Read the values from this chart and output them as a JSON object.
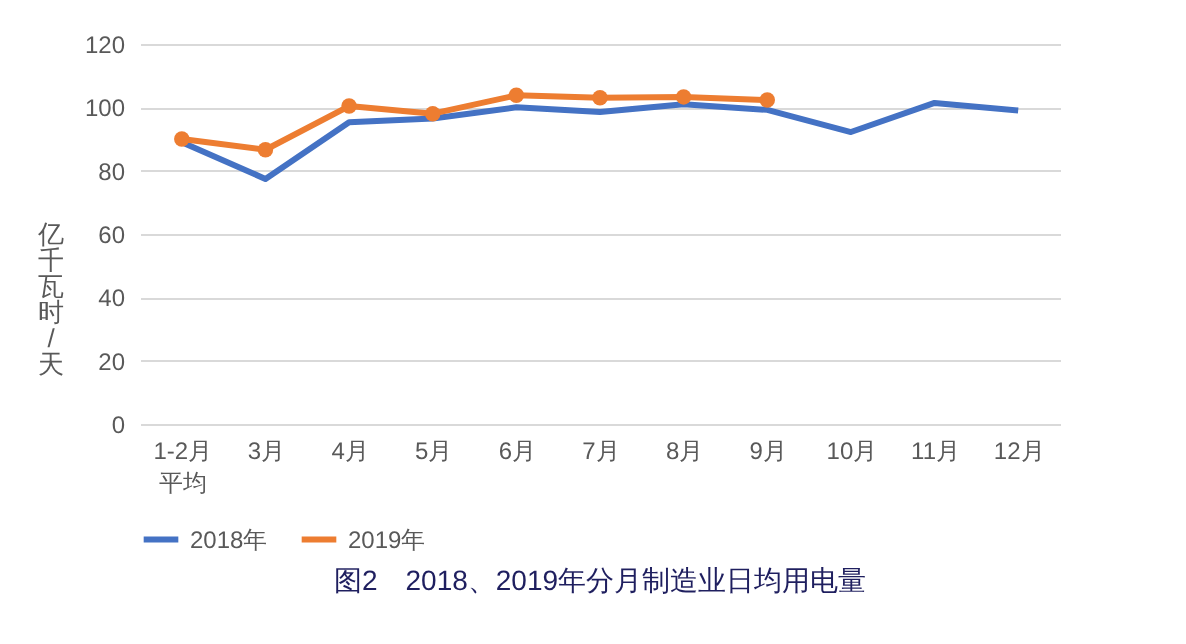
{
  "chart_data": {
    "type": "line",
    "title": "图2　2018、2019年分月制造业日均用电量",
    "ylabel": "亿千瓦时/天",
    "categories": [
      "1-2月平均",
      "3月",
      "4月",
      "5月",
      "6月",
      "7月",
      "8月",
      "9月",
      "10月",
      "11月",
      "12月"
    ],
    "series": [
      {
        "name": "2018年",
        "color": "#4472c4",
        "marker": "none",
        "values": [
          89,
          77.4,
          95.3,
          96.5,
          100,
          98.5,
          101,
          99.2,
          92.2,
          101.4,
          99
        ]
      },
      {
        "name": "2019年",
        "color": "#ed7d31",
        "marker": "circle",
        "values": [
          90,
          86.6,
          100.4,
          98,
          103.8,
          103,
          103.3,
          102.3,
          null,
          null,
          null
        ]
      }
    ],
    "ylim": [
      0,
      120
    ],
    "yticks": [
      0,
      20,
      40,
      60,
      80,
      100,
      120
    ],
    "grid": "y",
    "legend": "bottom"
  }
}
